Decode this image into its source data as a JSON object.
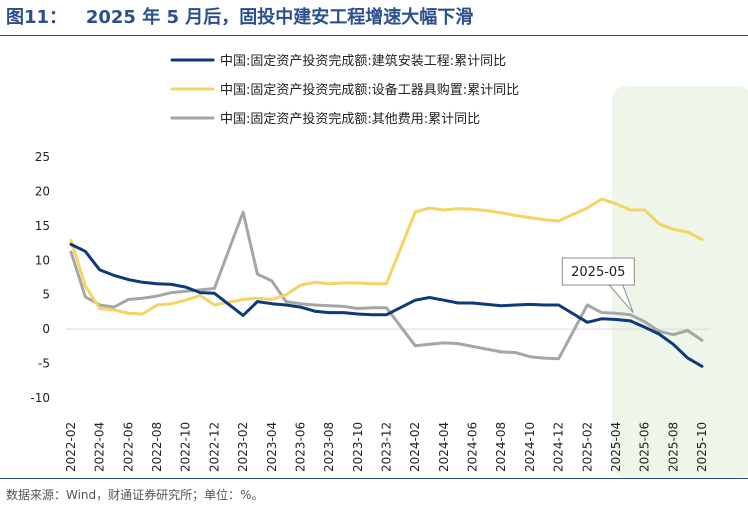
{
  "figure": {
    "title": "图11：   2025 年 5 月后，固投中建安工程增速大幅下滑",
    "source": "数据来源：Wind，财通证券研究所；单位：%。"
  },
  "chart_data": {
    "type": "line",
    "x": [
      "2022-02",
      "2022-03",
      "2022-04",
      "2022-05",
      "2022-06",
      "2022-07",
      "2022-08",
      "2022-09",
      "2022-10",
      "2022-11",
      "2022-12",
      "2023-02",
      "2023-03",
      "2023-04",
      "2023-05",
      "2023-06",
      "2023-07",
      "2023-08",
      "2023-09",
      "2023-10",
      "2023-11",
      "2023-12",
      "2024-02",
      "2024-03",
      "2024-04",
      "2024-05",
      "2024-06",
      "2024-07",
      "2024-08",
      "2024-09",
      "2024-10",
      "2024-11",
      "2024-12",
      "2025-02",
      "2025-03",
      "2025-04",
      "2025-05",
      "2025-06",
      "2025-07",
      "2025-08",
      "2025-09",
      "2025-10"
    ],
    "x_tick_labels": [
      "2022-02",
      "2022-04",
      "2022-06",
      "2022-08",
      "2022-10",
      "2022-12",
      "2023-02",
      "2023-04",
      "2023-06",
      "2023-08",
      "2023-10",
      "2023-12",
      "2024-02",
      "2024-04",
      "2024-06",
      "2024-08",
      "2024-10",
      "2024-12",
      "2025-02",
      "2025-04",
      "2025-06",
      "2025-08",
      "2025-10"
    ],
    "series": [
      {
        "name": "中国:固定资产投资完成额:建筑安装工程:累计同比",
        "color": "#0d3a7a",
        "values": [
          12.3,
          11.3,
          8.6,
          7.8,
          7.2,
          6.8,
          6.6,
          6.5,
          6.1,
          5.3,
          5.2,
          2.0,
          4.0,
          3.7,
          3.5,
          3.2,
          2.6,
          2.4,
          2.4,
          2.2,
          2.1,
          2.1,
          4.2,
          4.6,
          4.2,
          3.8,
          3.8,
          3.6,
          3.4,
          3.5,
          3.6,
          3.5,
          3.5,
          1.0,
          1.5,
          1.4,
          1.2,
          0.3,
          -0.7,
          -2.2,
          -4.2,
          -5.4
        ]
      },
      {
        "name": "中国:固定资产投资完成额:设备工器具购置:累计同比",
        "color": "#f6d365",
        "values": [
          12.9,
          6.3,
          3.0,
          2.8,
          2.3,
          2.2,
          3.5,
          3.7,
          4.2,
          4.9,
          3.5,
          4.3,
          4.5,
          4.3,
          5.0,
          6.4,
          6.8,
          6.6,
          6.7,
          6.7,
          6.6,
          6.6,
          17.0,
          17.6,
          17.3,
          17.5,
          17.4,
          17.2,
          16.9,
          16.5,
          16.2,
          15.9,
          15.7,
          17.6,
          18.9,
          18.2,
          17.3,
          17.3,
          15.3,
          14.5,
          14.1,
          13.0
        ]
      },
      {
        "name": "中国:固定资产投资完成额:其他费用:累计同比",
        "color": "#a6a6a6",
        "values": [
          11.2,
          4.7,
          3.5,
          3.2,
          4.3,
          4.5,
          4.8,
          5.3,
          5.5,
          5.7,
          5.9,
          17.0,
          8.0,
          7.0,
          4.0,
          3.7,
          3.5,
          3.4,
          3.3,
          3.0,
          3.1,
          3.1,
          -2.4,
          -2.2,
          -2.0,
          -2.1,
          -2.5,
          -2.9,
          -3.3,
          -3.4,
          -4.0,
          -4.2,
          -4.3,
          3.5,
          2.4,
          2.3,
          2.1,
          1.1,
          -0.3,
          -0.8,
          -0.2,
          -1.6
        ]
      }
    ],
    "ylim": [
      -10,
      25
    ],
    "yticks": [
      -10,
      -5,
      0,
      5,
      10,
      15,
      20,
      25
    ],
    "annotation": {
      "label": "2025-05",
      "x": "2025-05"
    },
    "highlight_band": {
      "from": "2025-04",
      "to": "2025-10",
      "color": "#eef6ea"
    },
    "legend_position": "top-center",
    "grid": false
  }
}
